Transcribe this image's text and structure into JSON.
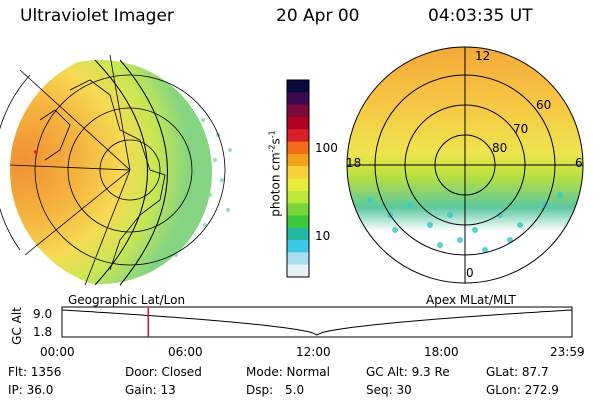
{
  "header": {
    "instrument": "Ultraviolet Imager",
    "date": "20 Apr 00",
    "time": "04:03:35 UT"
  },
  "left_map": {
    "label": "Geographic Lat/Lon"
  },
  "right_map": {
    "label": "Apex MLat/MLT",
    "mlt_labels": [
      "12",
      "18",
      "6",
      "0"
    ],
    "lat_labels": [
      "60",
      "70",
      "80"
    ]
  },
  "colorbar": {
    "unit_label": "photon cm",
    "unit_exp1": "-2",
    "unit_s": "s",
    "unit_exp2": "-1",
    "ticks": [
      "100",
      "10"
    ],
    "colors": [
      "#08083a",
      "#3b0a52",
      "#7a0a3c",
      "#b00020",
      "#d8202a",
      "#f06a1a",
      "#f4a01a",
      "#f8d23a",
      "#e8ec3a",
      "#bce83a",
      "#7cd63a",
      "#3cc83a",
      "#22b8a0",
      "#3ec8e8",
      "#a8def0",
      "#e6f1f6"
    ]
  },
  "timeline": {
    "ylabel": "GC Alt",
    "ytick_top": "9.0",
    "ytick_bottom": "1.8",
    "xticks": [
      "00:00",
      "06:00",
      "12:00",
      "18:00",
      "23:59"
    ],
    "marker_hour": 4.06
  },
  "info": {
    "flt": "Flt: 1356",
    "ip": "IP: 36.0",
    "door": "Door: Closed",
    "gain": "Gain: 13",
    "mode": "Mode: Normal",
    "dsp_label": "Dsp:",
    "dsp_value": "5.0",
    "gc_alt": "GC Alt: 9.3 Re",
    "seq": "Seq: 30",
    "glat": "GLat: 87.7",
    "glon": "GLon: 272.9"
  }
}
